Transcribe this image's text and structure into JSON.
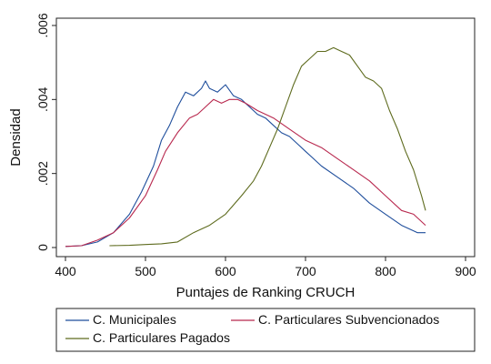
{
  "chart_data": {
    "type": "line",
    "xlabel": "Puntajes de Ranking CRUCH",
    "ylabel": "Densidad",
    "xlim": [
      400,
      900
    ],
    "ylim": [
      0,
      0.006
    ],
    "xticks": [
      400,
      500,
      600,
      700,
      800,
      900
    ],
    "yticks": [
      0,
      0.002,
      0.004,
      0.006
    ],
    "xtick_labels": [
      "400",
      "500",
      "600",
      "700",
      "800",
      "900"
    ],
    "ytick_labels": [
      "0",
      ".002",
      ".004",
      ".006"
    ],
    "grid": false,
    "legend_position": "bottom",
    "series": [
      {
        "name": "C. Municipales",
        "color": "#1f4e9c",
        "points": [
          [
            400,
            3e-05
          ],
          [
            420,
            5e-05
          ],
          [
            440,
            0.00015
          ],
          [
            460,
            0.0004
          ],
          [
            480,
            0.0009
          ],
          [
            495,
            0.0015
          ],
          [
            510,
            0.0022
          ],
          [
            520,
            0.0029
          ],
          [
            530,
            0.0033
          ],
          [
            540,
            0.0038
          ],
          [
            550,
            0.0042
          ],
          [
            560,
            0.0041
          ],
          [
            570,
            0.0043
          ],
          [
            575,
            0.0045
          ],
          [
            580,
            0.0043
          ],
          [
            590,
            0.0042
          ],
          [
            600,
            0.0044
          ],
          [
            610,
            0.0041
          ],
          [
            620,
            0.004
          ],
          [
            630,
            0.0038
          ],
          [
            640,
            0.0036
          ],
          [
            650,
            0.0035
          ],
          [
            660,
            0.0033
          ],
          [
            670,
            0.0031
          ],
          [
            680,
            0.003
          ],
          [
            690,
            0.0028
          ],
          [
            700,
            0.0026
          ],
          [
            710,
            0.0024
          ],
          [
            720,
            0.0022
          ],
          [
            740,
            0.0019
          ],
          [
            760,
            0.0016
          ],
          [
            780,
            0.0012
          ],
          [
            800,
            0.0009
          ],
          [
            820,
            0.0006
          ],
          [
            840,
            0.0004
          ],
          [
            850,
            0.0004
          ]
        ]
      },
      {
        "name": "C. Particulares Subvencionados",
        "color": "#b8284e",
        "points": [
          [
            400,
            3e-05
          ],
          [
            420,
            5e-05
          ],
          [
            440,
            0.0002
          ],
          [
            460,
            0.0004
          ],
          [
            480,
            0.0008
          ],
          [
            500,
            0.0014
          ],
          [
            515,
            0.0021
          ],
          [
            525,
            0.0026
          ],
          [
            540,
            0.0031
          ],
          [
            555,
            0.0035
          ],
          [
            565,
            0.0036
          ],
          [
            575,
            0.0038
          ],
          [
            585,
            0.004
          ],
          [
            595,
            0.0039
          ],
          [
            605,
            0.004
          ],
          [
            615,
            0.004
          ],
          [
            625,
            0.0039
          ],
          [
            640,
            0.0037
          ],
          [
            660,
            0.0035
          ],
          [
            680,
            0.0032
          ],
          [
            700,
            0.0029
          ],
          [
            720,
            0.0027
          ],
          [
            740,
            0.0024
          ],
          [
            760,
            0.0021
          ],
          [
            780,
            0.0018
          ],
          [
            800,
            0.0014
          ],
          [
            820,
            0.001
          ],
          [
            835,
            0.0009
          ],
          [
            850,
            0.0006
          ]
        ]
      },
      {
        "name": "C. Particulares Pagados",
        "color": "#5e6b1e",
        "points": [
          [
            455,
            5e-05
          ],
          [
            480,
            6e-05
          ],
          [
            500,
            8e-05
          ],
          [
            520,
            0.0001
          ],
          [
            540,
            0.00015
          ],
          [
            560,
            0.0004
          ],
          [
            580,
            0.0006
          ],
          [
            600,
            0.0009
          ],
          [
            620,
            0.0014
          ],
          [
            635,
            0.0018
          ],
          [
            645,
            0.0022
          ],
          [
            655,
            0.0027
          ],
          [
            665,
            0.0032
          ],
          [
            675,
            0.0038
          ],
          [
            685,
            0.0044
          ],
          [
            695,
            0.0049
          ],
          [
            705,
            0.0051
          ],
          [
            715,
            0.0053
          ],
          [
            725,
            0.0053
          ],
          [
            735,
            0.0054
          ],
          [
            745,
            0.0053
          ],
          [
            755,
            0.0052
          ],
          [
            765,
            0.0049
          ],
          [
            775,
            0.0046
          ],
          [
            785,
            0.0045
          ],
          [
            795,
            0.0043
          ],
          [
            805,
            0.0037
          ],
          [
            815,
            0.0032
          ],
          [
            825,
            0.0026
          ],
          [
            835,
            0.0021
          ],
          [
            845,
            0.0014
          ],
          [
            850,
            0.001
          ]
        ]
      }
    ]
  }
}
